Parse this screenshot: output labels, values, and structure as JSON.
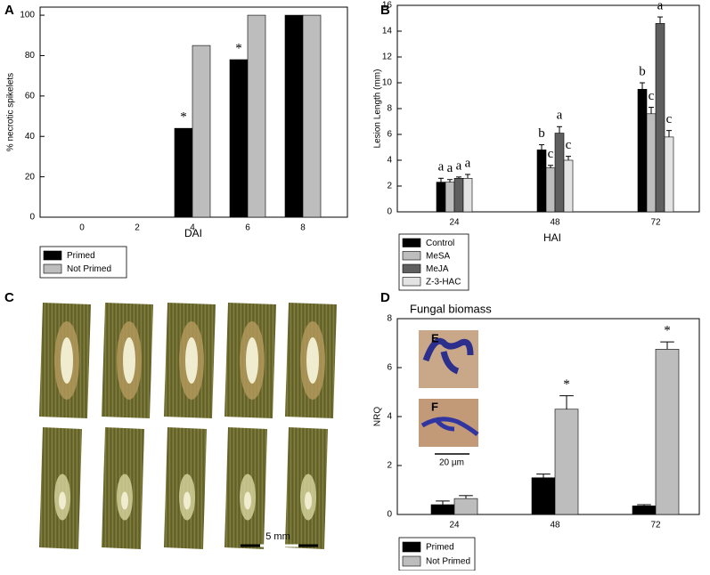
{
  "chart_data": [
    {
      "type": "bar",
      "panel_label": "A",
      "xlabel": "DAI",
      "ylabel": "% necrotic spikelets",
      "categories": [
        "0",
        "2",
        "4",
        "6",
        "8"
      ],
      "series": [
        {
          "name": "Primed",
          "color": "#000000",
          "values": [
            0,
            0,
            44,
            78,
            100
          ],
          "annotations": [
            null,
            null,
            "*",
            "*",
            null
          ]
        },
        {
          "name": "Not Primed",
          "color": "#bdbdbd",
          "values": [
            0,
            0,
            85,
            100,
            100
          ]
        }
      ],
      "ylim": [
        0,
        104
      ],
      "yticks": [
        0,
        20,
        40,
        60,
        80,
        100
      ]
    },
    {
      "type": "bar",
      "panel_label": "B",
      "xlabel": "HAI",
      "ylabel": "Lesion Length (mm)",
      "categories": [
        "24",
        "48",
        "72"
      ],
      "series": [
        {
          "name": "Control",
          "color": "#000000",
          "values": [
            2.3,
            4.8,
            9.5
          ],
          "errors": [
            0.3,
            0.4,
            0.5
          ],
          "annotations": [
            "a",
            "b",
            "b"
          ]
        },
        {
          "name": "MeSA",
          "color": "#bdbdbd",
          "values": [
            2.3,
            3.4,
            7.6
          ],
          "errors": [
            0.2,
            0.2,
            0.5
          ],
          "annotations": [
            "a",
            "c",
            "c"
          ]
        },
        {
          "name": "MeJA",
          "color": "#5f5f5f",
          "values": [
            2.6,
            6.1,
            14.6
          ],
          "errors": [
            0.1,
            0.5,
            0.5
          ],
          "annotations": [
            "a",
            "a",
            "a"
          ]
        },
        {
          "name": "Z-3-HAC",
          "color": "#e3e3e3",
          "values": [
            2.6,
            4.0,
            5.8
          ],
          "errors": [
            0.3,
            0.3,
            0.5
          ],
          "annotations": [
            "a",
            "c",
            "c"
          ]
        }
      ],
      "ylim": [
        0,
        16
      ],
      "yticks": [
        0,
        2,
        4,
        6,
        8,
        10,
        12,
        14,
        16
      ]
    },
    {
      "type": "bar",
      "panel_label": "D",
      "title": "Fungal biomass",
      "ylabel": "NRQ",
      "categories": [
        "24",
        "48",
        "72"
      ],
      "series": [
        {
          "name": "Primed",
          "color": "#000000",
          "values": [
            0.4,
            1.5,
            0.35
          ],
          "errors": [
            0.15,
            0.15,
            0.05
          ]
        },
        {
          "name": "Not Primed",
          "color": "#bdbdbd",
          "values": [
            0.65,
            4.3,
            6.75
          ],
          "errors": [
            0.12,
            0.55,
            0.3
          ],
          "annotations": [
            null,
            "*",
            "*"
          ]
        }
      ],
      "ylim": [
        0,
        8
      ],
      "yticks": [
        0,
        2,
        4,
        6,
        8
      ]
    }
  ],
  "images": {
    "panel_c": {
      "label": "C",
      "scale_bar": "5 mm"
    },
    "inset_e": {
      "label": "E"
    },
    "inset_f": {
      "label": "F"
    },
    "inset_scale_bar": "20 µm"
  }
}
